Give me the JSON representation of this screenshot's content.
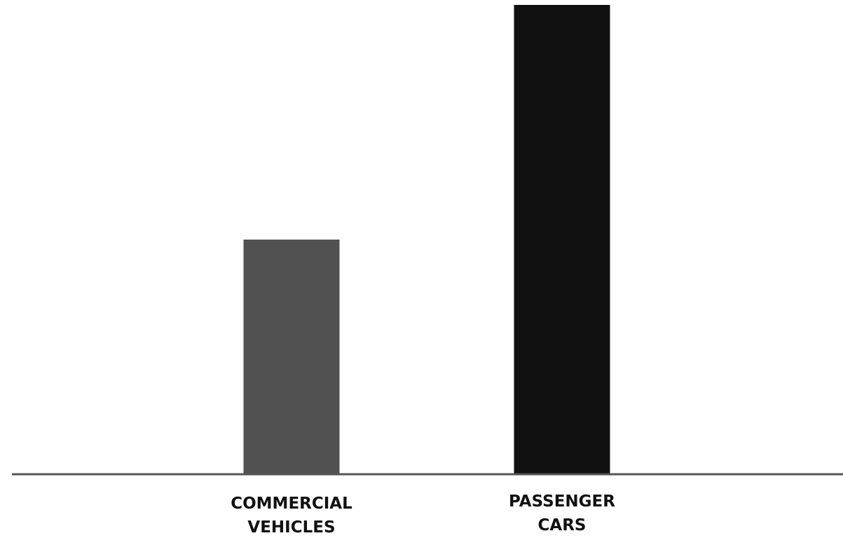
{
  "chart_data": {
    "type": "bar",
    "title": "",
    "xlabel": "",
    "ylabel": "",
    "categories": [
      [
        "COMMERCIAL",
        "VEHICLES"
      ],
      [
        "PASSENGER",
        "CARS"
      ]
    ],
    "values": [
      50,
      100
    ],
    "ylim": [
      0,
      100
    ],
    "grid": false,
    "bar_colors": [
      "#515151",
      "#111111"
    ],
    "axis_color": "#555555"
  }
}
